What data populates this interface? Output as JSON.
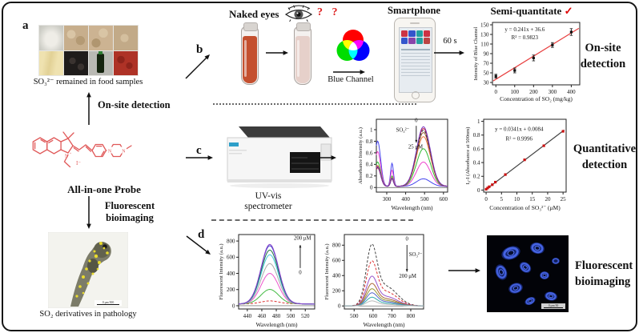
{
  "figure": {
    "panel_a": "a",
    "panel_b": "b",
    "panel_c": "c",
    "panel_d": "d",
    "food_caption": "SO₃²⁻ remained in food samples",
    "onsite_arrow_label": "On-site detection",
    "probe_name": "All-in-one Probe",
    "bioimaging_arrow_line1": "Fluorescent",
    "bioimaging_arrow_line2": "bioimaging",
    "fish_caption": "SO₂ derivatives in pathology",
    "fish_scale_text": "0  μm  500",
    "naked_eyes": "Naked eyes",
    "question_marks": "? ?",
    "blue_channel": "Blue Channel",
    "smartphone": "Smartphone",
    "reaction_time": "60 s",
    "semi_quantitate": "Semi-quantitate",
    "check_mark": "✓",
    "uvvis_line1": "UV-vis",
    "uvvis_line2": "spectrometer",
    "onsite_line1": "On-site",
    "onsite_line2": "detection",
    "quant_line1": "Quantitative",
    "quant_line2": "detection",
    "fluor_line1": "Fluorescent",
    "fluor_line2": "bioimaging",
    "cells_scale_text": "0  μm  50",
    "probe_atom_n_plus": "N",
    "probe_plus": "+",
    "probe_iodide": "I⁻",
    "probe_n_left": "N",
    "probe_n_right": "N"
  },
  "colors": {
    "probe_structure": "#e05858",
    "question_marks": "#dd2222",
    "check_mark": "#dd0000",
    "vial_before": "#c4502f",
    "vial_after": "#e6d0ca",
    "rgb_red": "#ff0000",
    "rgb_green": "#00dd00",
    "rgb_blue": "#0000ff",
    "rgb_yellow": "#ffff00",
    "rgb_magenta": "#ff00ff",
    "rgb_cyan": "#00ffff",
    "rgb_center": "#ffffff"
  },
  "chart_data": [
    {
      "id": "blue_channel_calibration",
      "type": "scatter",
      "xlabel": "Concentration of SO₂ (mg/kg)",
      "ylabel": "Intensity of Blue Channel",
      "xlim": [
        -18,
        445
      ],
      "ylim": [
        25,
        155
      ],
      "x_ticks": [
        0,
        100,
        200,
        300,
        400
      ],
      "y_ticks": [
        30,
        50,
        70,
        90,
        110,
        130,
        150
      ],
      "points": [
        [
          0,
          43,
          4
        ],
        [
          100,
          55,
          5
        ],
        [
          200,
          81,
          6
        ],
        [
          300,
          108,
          5
        ],
        [
          400,
          135,
          7
        ]
      ],
      "point_color": "#111111",
      "marker": "square",
      "fit": {
        "x1": -14,
        "x2": 440,
        "slope": 0.241,
        "intercept": 36.6,
        "color": "#e84040"
      },
      "annot": {
        "fx": 0.37,
        "fy": 0.86,
        "lines": [
          "y = 0.241x + 36.6",
          "R² = 0.9823"
        ]
      },
      "margins": {
        "l": 27,
        "r": 6,
        "t": 6,
        "b": 22
      }
    },
    {
      "id": "uvvis_absorbance",
      "type": "curves",
      "xlabel": "Wavelength (nm)",
      "ylabel": "Absorbance Intensity (a.u.)",
      "xlim": [
        245,
        622
      ],
      "ylim": [
        -0.08,
        1.18
      ],
      "x_ticks": [
        300,
        400,
        500,
        600
      ],
      "y_ticks": [
        0,
        0.2,
        0.4,
        0.6,
        0.8,
        1
      ],
      "zero_line": true,
      "curves": [
        {
          "color": "#4444ee",
          "base": 0.02,
          "comps": [
            [
              0.78,
              252,
              22
            ],
            [
              0.4,
              328,
              11
            ],
            [
              0.13,
              494,
              52
            ]
          ]
        },
        {
          "color": "#ee44cc",
          "base": 0.02,
          "comps": [
            [
              0.6,
              252,
              22
            ],
            [
              0.28,
              328,
              11
            ],
            [
              0.42,
              494,
              52
            ]
          ]
        },
        {
          "color": "#33bb33",
          "base": 0.02,
          "comps": [
            [
              0.42,
              252,
              22
            ],
            [
              0.18,
              328,
              11
            ],
            [
              0.65,
              494,
              52
            ]
          ]
        },
        {
          "color": "#ee7744",
          "base": 0.02,
          "comps": [
            [
              0.36,
              252,
              22
            ],
            [
              0.15,
              328,
              11
            ],
            [
              0.86,
              494,
              52
            ]
          ]
        },
        {
          "color": "#996633",
          "base": 0.02,
          "comps": [
            [
              0.34,
              252,
              22
            ],
            [
              0.14,
              328,
              11
            ],
            [
              0.93,
              494,
              52
            ]
          ]
        },
        {
          "color": "#cc2244",
          "base": 0.02,
          "comps": [
            [
              0.32,
              252,
              22
            ],
            [
              0.13,
              328,
              11
            ],
            [
              1.0,
              494,
              52
            ]
          ]
        },
        {
          "color": "#333333",
          "dash": "3 2",
          "base": 0.02,
          "comps": [
            [
              0.33,
              252,
              22
            ],
            [
              0.13,
              328,
              11
            ],
            [
              0.97,
              494,
              52
            ]
          ]
        },
        {
          "color": "#7733bb",
          "base": 0.02,
          "comps": [
            [
              0.34,
              252,
              22
            ],
            [
              0.14,
              328,
              11
            ],
            [
              1.03,
              494,
              52
            ]
          ]
        }
      ],
      "labels": [
        {
          "fx": 0.56,
          "fy": 0.96,
          "t": "0"
        },
        {
          "fx": 0.37,
          "fy": 0.83,
          "t": "SO₃²⁻"
        },
        {
          "fx": 0.55,
          "fy": 0.6,
          "t": "25 μM"
        }
      ],
      "arrows": [
        {
          "fx1": 0.56,
          "fy1": 0.91,
          "fx2": 0.56,
          "fy2": 0.68
        }
      ],
      "margins": {
        "l": 26,
        "r": 5,
        "t": 5,
        "b": 24
      }
    },
    {
      "id": "absorbance_calibration",
      "type": "scatter",
      "xlabel": "Concentration of SO₃²⁻ (μM)",
      "ylabel": "I₀-I (Absorbance at 500nm)",
      "xlim": [
        -0.8,
        26
      ],
      "ylim": [
        -0.03,
        1.03
      ],
      "x_ticks": [
        0,
        5,
        10,
        15,
        20,
        25
      ],
      "y_ticks": [
        0,
        0.2,
        0.4,
        0.6,
        0.8,
        1
      ],
      "points": [
        [
          0,
          0.012
        ],
        [
          0.5,
          0.03
        ],
        [
          1,
          0.048
        ],
        [
          2,
          0.078
        ],
        [
          3,
          0.115
        ],
        [
          6.25,
          0.225
        ],
        [
          12.5,
          0.44
        ],
        [
          18.75,
          0.645
        ],
        [
          25,
          0.855
        ]
      ],
      "point_color": "#cc1111",
      "marker": "square",
      "fit": {
        "x1": 0,
        "x2": 25.4,
        "slope": 0.0341,
        "intercept": 0.0084,
        "color": "#444444"
      },
      "annot": {
        "fx": 0.43,
        "fy": 0.84,
        "lines": [
          "y = 0.0341x + 0.0084",
          "R² = 0.9996"
        ]
      },
      "margins": {
        "l": 26,
        "r": 7,
        "t": 5,
        "b": 24
      }
    },
    {
      "id": "fluorescence_blue_emission",
      "type": "curves",
      "xlabel": "Wavelength (nm)",
      "ylabel": "Fluorescent Intensity (a.u.)",
      "xlim": [
        428,
        533
      ],
      "ylim": [
        -40,
        880
      ],
      "x_ticks": [
        440,
        460,
        480,
        500,
        520
      ],
      "y_ticks": [
        0,
        200,
        400,
        600,
        800
      ],
      "zero_line": true,
      "curves": [
        {
          "color": "#dd3333",
          "dash": "3 2",
          "comps": [
            [
              34,
              471,
              17
            ],
            [
              26,
              478,
              110
            ]
          ]
        },
        {
          "color": "#44bb44",
          "comps": [
            [
              176,
              471,
              17
            ],
            [
              26,
              478,
              110
            ]
          ]
        },
        {
          "color": "#ee55cc",
          "comps": [
            [
              374,
              471,
              17
            ],
            [
              26,
              478,
              110
            ]
          ]
        },
        {
          "color": "#aaaaaa",
          "comps": [
            [
              495,
              471,
              17
            ],
            [
              26,
              478,
              110
            ]
          ]
        },
        {
          "color": "#44ccdd",
          "comps": [
            [
              604,
              471,
              17
            ],
            [
              26,
              478,
              110
            ]
          ]
        },
        {
          "color": "#227744",
          "comps": [
            [
              662,
              471,
              17
            ],
            [
              26,
              478,
              110
            ]
          ]
        },
        {
          "color": "#4444cc",
          "comps": [
            [
              716,
              471,
              17
            ],
            [
              26,
              478,
              110
            ]
          ]
        },
        {
          "color": "#8844cc",
          "comps": [
            [
              732,
              471,
              17
            ],
            [
              26,
              478,
              110
            ]
          ]
        }
      ],
      "labels": [
        {
          "fx": 0.84,
          "fy": 0.93,
          "t": "200 μM"
        },
        {
          "fx": 0.81,
          "fy": 0.47,
          "t": "0"
        }
      ],
      "arrows": [
        {
          "fx1": 0.81,
          "fy1": 0.55,
          "fx2": 0.81,
          "fy2": 0.86
        }
      ],
      "margins": {
        "l": 28,
        "r": 5,
        "t": 5,
        "b": 24
      }
    },
    {
      "id": "fluorescence_red_emission",
      "type": "curves",
      "xlabel": "Wavelength (nm)",
      "ylabel": "Fluorescent Intensity (a.u.)",
      "xlim": [
        448,
        868
      ],
      "ylim": [
        -40,
        940
      ],
      "x_ticks": [
        500,
        600,
        700,
        800
      ],
      "y_ticks": [
        0,
        200,
        400,
        600,
        800
      ],
      "zero_line": true,
      "curves": [
        {
          "color": "#444444",
          "dash": "3 2",
          "comps": [
            [
              697,
              592,
              40
            ],
            [
              255,
              668,
              85
            ]
          ]
        },
        {
          "color": "#dd3333",
          "dash": "3 2",
          "comps": [
            [
              508,
              592,
              40
            ],
            [
              186,
              668,
              85
            ]
          ]
        },
        {
          "color": "#9955cc",
          "comps": [
            [
              336,
              592,
              40
            ],
            [
              123,
              668,
              85
            ]
          ]
        },
        {
          "color": "#aa6633",
          "comps": [
            [
              254,
              592,
              40
            ],
            [
              93,
              668,
              85
            ]
          ]
        },
        {
          "color": "#999933",
          "comps": [
            [
              193,
              592,
              40
            ],
            [
              71,
              668,
              85
            ]
          ]
        },
        {
          "color": "#5566cc",
          "comps": [
            [
              148,
              592,
              40
            ],
            [
              54,
              668,
              85
            ]
          ]
        },
        {
          "color": "#33aaaa",
          "comps": [
            [
              98,
              592,
              40
            ],
            [
              36,
              668,
              85
            ]
          ]
        },
        {
          "color": "#bbbbbb",
          "comps": [
            [
              57,
              592,
              40
            ],
            [
              21,
              668,
              85
            ]
          ]
        }
      ],
      "labels": [
        {
          "fx": 0.79,
          "fy": 0.92,
          "t": "0"
        },
        {
          "fx": 0.9,
          "fy": 0.71,
          "t": "SO₃²⁻"
        },
        {
          "fx": 0.8,
          "fy": 0.42,
          "t": "200 μM"
        }
      ],
      "arrows": [
        {
          "fx1": 0.79,
          "fy1": 0.86,
          "fx2": 0.79,
          "fy2": 0.5
        }
      ],
      "margins": {
        "l": 28,
        "r": 5,
        "t": 5,
        "b": 24
      }
    }
  ]
}
